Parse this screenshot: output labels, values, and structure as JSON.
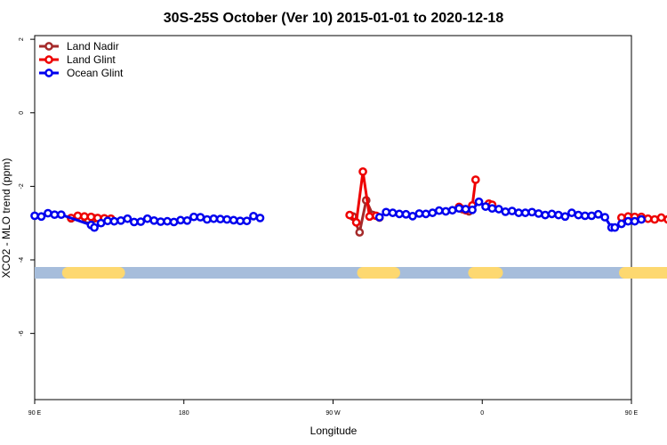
{
  "chart_data": {
    "type": "line",
    "title": "30S-25S October (Ver 10)   2015-01-01 to 2020-12-18",
    "xlabel": "Longitude",
    "ylabel": "XCO2 - MLO trend (ppm)",
    "xlim": [
      90,
      450
    ],
    "ylim": [
      -7.8,
      2.1
    ],
    "x_ticks": [
      {
        "value": 90,
        "label": "90 E"
      },
      {
        "value": 180,
        "label": "180"
      },
      {
        "value": 270,
        "label": "90 W"
      },
      {
        "value": 360,
        "label": "0"
      },
      {
        "value": 450,
        "label": "90 E"
      }
    ],
    "y_ticks": [
      {
        "value": 2,
        "label": "2"
      },
      {
        "value": 0,
        "label": "0"
      },
      {
        "value": -2,
        "label": "-2"
      },
      {
        "value": -4,
        "label": "-4"
      },
      {
        "value": -6,
        "label": "-6"
      }
    ],
    "legend_position": "top-left",
    "land_band": {
      "y": -4.35,
      "ocean_color": "#a6bddb",
      "land_color": "#fdd870",
      "land_segments": [
        [
          110,
          141
        ],
        [
          288,
          307
        ],
        [
          355,
          369
        ],
        [
          446,
          478
        ]
      ]
    },
    "series": [
      {
        "name": "Land Nadir",
        "color": "#a52a2a",
        "segments": [
          [
            [
              112,
              -2.87
            ],
            [
              118,
              -2.87
            ],
            [
              122,
              -2.9
            ],
            [
              126,
              -2.87
            ]
          ],
          [
            [
              282,
              -2.82
            ],
            [
              286,
              -3.25
            ],
            [
              290,
              -2.38
            ],
            [
              294,
              -2.78
            ],
            [
              298,
              -2.85
            ]
          ],
          [
            [
              348,
              -2.62
            ],
            [
              352,
              -2.68
            ]
          ],
          [
            [
              446,
              -2.93
            ],
            [
              450,
              -2.9
            ]
          ]
        ]
      },
      {
        "name": "Land Glint",
        "color": "#ee0000",
        "segments": [
          [
            [
              112,
              -2.86
            ],
            [
              116,
              -2.8
            ],
            [
              120,
              -2.82
            ],
            [
              124,
              -2.83
            ],
            [
              128,
              -2.86
            ],
            [
              132,
              -2.87
            ],
            [
              136,
              -2.88
            ]
          ],
          [
            [
              280,
              -2.78
            ],
            [
              284,
              -2.98
            ],
            [
              288,
              -1.6
            ],
            [
              292,
              -2.82
            ],
            [
              296,
              -2.8
            ]
          ],
          [
            [
              346,
              -2.56
            ],
            [
              350,
              -2.65
            ],
            [
              354,
              -2.52
            ],
            [
              356,
              -1.82
            ]
          ],
          [
            [
              364,
              -2.47
            ],
            [
              366,
              -2.5
            ]
          ],
          [
            [
              444,
              -2.85
            ],
            [
              448,
              -2.82
            ],
            [
              452,
              -2.83
            ],
            [
              456,
              -2.83
            ],
            [
              460,
              -2.88
            ],
            [
              464,
              -2.9
            ],
            [
              468,
              -2.85
            ],
            [
              472,
              -2.9
            ]
          ]
        ]
      },
      {
        "name": "Ocean Glint",
        "color": "#0000ee",
        "segments": [
          [
            [
              90,
              -2.8
            ],
            [
              94,
              -2.82
            ],
            [
              98,
              -2.73
            ],
            [
              102,
              -2.77
            ],
            [
              106,
              -2.77
            ],
            [
              124,
              -3.05
            ]
          ],
          [
            [
              126,
              -3.12
            ],
            [
              130,
              -3.0
            ],
            [
              134,
              -2.94
            ],
            [
              138,
              -2.95
            ],
            [
              142,
              -2.93
            ],
            [
              146,
              -2.88
            ],
            [
              150,
              -2.97
            ],
            [
              154,
              -2.96
            ],
            [
              158,
              -2.88
            ],
            [
              162,
              -2.93
            ],
            [
              166,
              -2.96
            ],
            [
              170,
              -2.95
            ],
            [
              174,
              -2.97
            ],
            [
              178,
              -2.92
            ],
            [
              182,
              -2.93
            ],
            [
              186,
              -2.83
            ],
            [
              190,
              -2.84
            ],
            [
              194,
              -2.9
            ],
            [
              198,
              -2.88
            ],
            [
              202,
              -2.89
            ],
            [
              206,
              -2.9
            ],
            [
              210,
              -2.92
            ],
            [
              214,
              -2.94
            ],
            [
              218,
              -2.94
            ],
            [
              222,
              -2.81
            ],
            [
              226,
              -2.86
            ]
          ],
          [
            [
              298,
              -2.84
            ],
            [
              302,
              -2.7
            ],
            [
              306,
              -2.72
            ],
            [
              310,
              -2.75
            ],
            [
              314,
              -2.76
            ],
            [
              318,
              -2.81
            ],
            [
              322,
              -2.74
            ],
            [
              326,
              -2.75
            ],
            [
              330,
              -2.72
            ],
            [
              334,
              -2.66
            ],
            [
              338,
              -2.68
            ],
            [
              342,
              -2.65
            ],
            [
              346,
              -2.6
            ],
            [
              350,
              -2.62
            ],
            [
              354,
              -2.64
            ],
            [
              358,
              -2.42
            ],
            [
              362,
              -2.55
            ],
            [
              366,
              -2.6
            ],
            [
              370,
              -2.62
            ],
            [
              374,
              -2.69
            ],
            [
              378,
              -2.67
            ],
            [
              382,
              -2.72
            ],
            [
              386,
              -2.72
            ],
            [
              390,
              -2.7
            ],
            [
              394,
              -2.74
            ],
            [
              398,
              -2.78
            ],
            [
              402,
              -2.75
            ],
            [
              406,
              -2.78
            ],
            [
              410,
              -2.82
            ],
            [
              414,
              -2.72
            ],
            [
              418,
              -2.78
            ],
            [
              422,
              -2.8
            ],
            [
              426,
              -2.8
            ],
            [
              430,
              -2.76
            ],
            [
              434,
              -2.84
            ],
            [
              438,
              -3.12
            ]
          ],
          [
            [
              440,
              -3.12
            ],
            [
              444,
              -3.02
            ],
            [
              448,
              -2.95
            ],
            [
              452,
              -2.95
            ],
            [
              456,
              -2.9
            ]
          ]
        ]
      }
    ]
  }
}
